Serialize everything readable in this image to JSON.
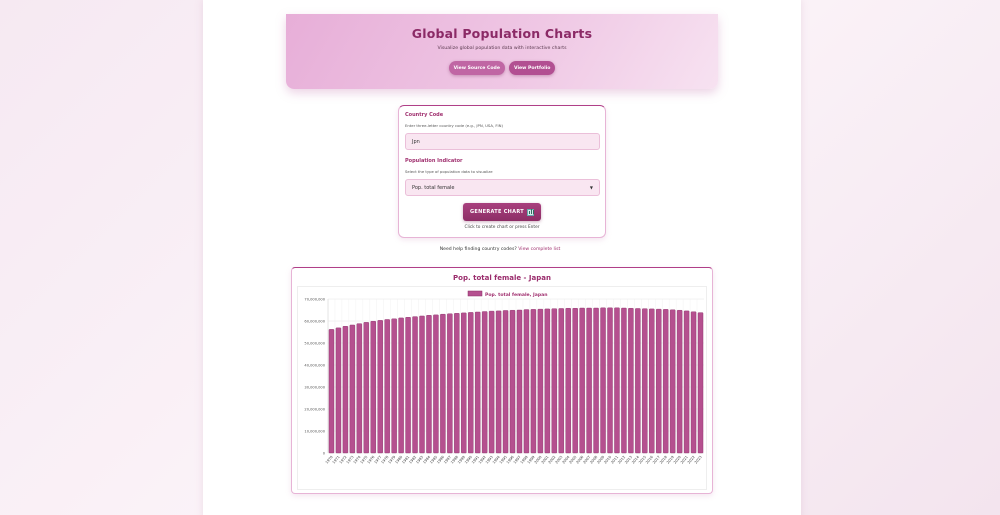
{
  "header": {
    "title": "Global Population Charts",
    "subtitle": "Visualize global population data with interactive charts",
    "buttons": [
      {
        "label": "View Source Code"
      },
      {
        "label": "View Portfolio"
      }
    ]
  },
  "form": {
    "country_label": "Country Code",
    "country_hint": "Enter three-letter country code (e.g., JPN, USA, FIN)",
    "country_value": "Jpn",
    "indicator_label": "Population Indicator",
    "indicator_hint": "Select the type of population data to visualize",
    "indicator_value": "Pop. total female",
    "generate_label": "GENERATE CHART",
    "generate_hint": "Click to create chart or press Enter"
  },
  "help": {
    "text": "Need help finding country codes?",
    "link": "View complete list"
  },
  "colors": {
    "accent": "#a0306f",
    "bar_fill": "#b5508f",
    "bar_stroke": "#8a2f67"
  },
  "chart_data": {
    "type": "bar",
    "title": "Pop. total female - Japan",
    "legend": "Pop. total female, Japan",
    "legend_position": "top",
    "ylim": [
      0,
      70000000
    ],
    "yticks": [
      0,
      10000000,
      20000000,
      30000000,
      40000000,
      50000000,
      60000000,
      70000000
    ],
    "ytick_labels": [
      "0",
      "10,000,000",
      "20,000,000",
      "30,000,000",
      "40,000,000",
      "50,000,000",
      "60,000,000",
      "70,000,000"
    ],
    "grid": true,
    "categories": [
      "1970",
      "1971",
      "1972",
      "1973",
      "1974",
      "1975",
      "1976",
      "1977",
      "1978",
      "1979",
      "1980",
      "1981",
      "1982",
      "1983",
      "1984",
      "1985",
      "1986",
      "1987",
      "1988",
      "1989",
      "1990",
      "1991",
      "1992",
      "1993",
      "1994",
      "1995",
      "1996",
      "1997",
      "1998",
      "1999",
      "2000",
      "2001",
      "2002",
      "2003",
      "2004",
      "2005",
      "2006",
      "2007",
      "2008",
      "2009",
      "2010",
      "2011",
      "2012",
      "2013",
      "2014",
      "2015",
      "2016",
      "2017",
      "2018",
      "2019",
      "2020",
      "2021",
      "2022",
      "2023"
    ],
    "values": [
      56200000,
      56900000,
      57600000,
      58200000,
      58800000,
      59400000,
      59900000,
      60300000,
      60700000,
      61000000,
      61400000,
      61700000,
      62000000,
      62300000,
      62600000,
      62800000,
      63100000,
      63300000,
      63500000,
      63700000,
      63900000,
      64100000,
      64300000,
      64500000,
      64600000,
      64800000,
      64900000,
      65000000,
      65200000,
      65300000,
      65400000,
      65500000,
      65600000,
      65700000,
      65800000,
      65800000,
      65900000,
      65900000,
      65900000,
      66000000,
      66000000,
      66000000,
      65900000,
      65800000,
      65700000,
      65600000,
      65500000,
      65400000,
      65300000,
      65100000,
      64900000,
      64600000,
      64200000,
      63800000
    ]
  }
}
